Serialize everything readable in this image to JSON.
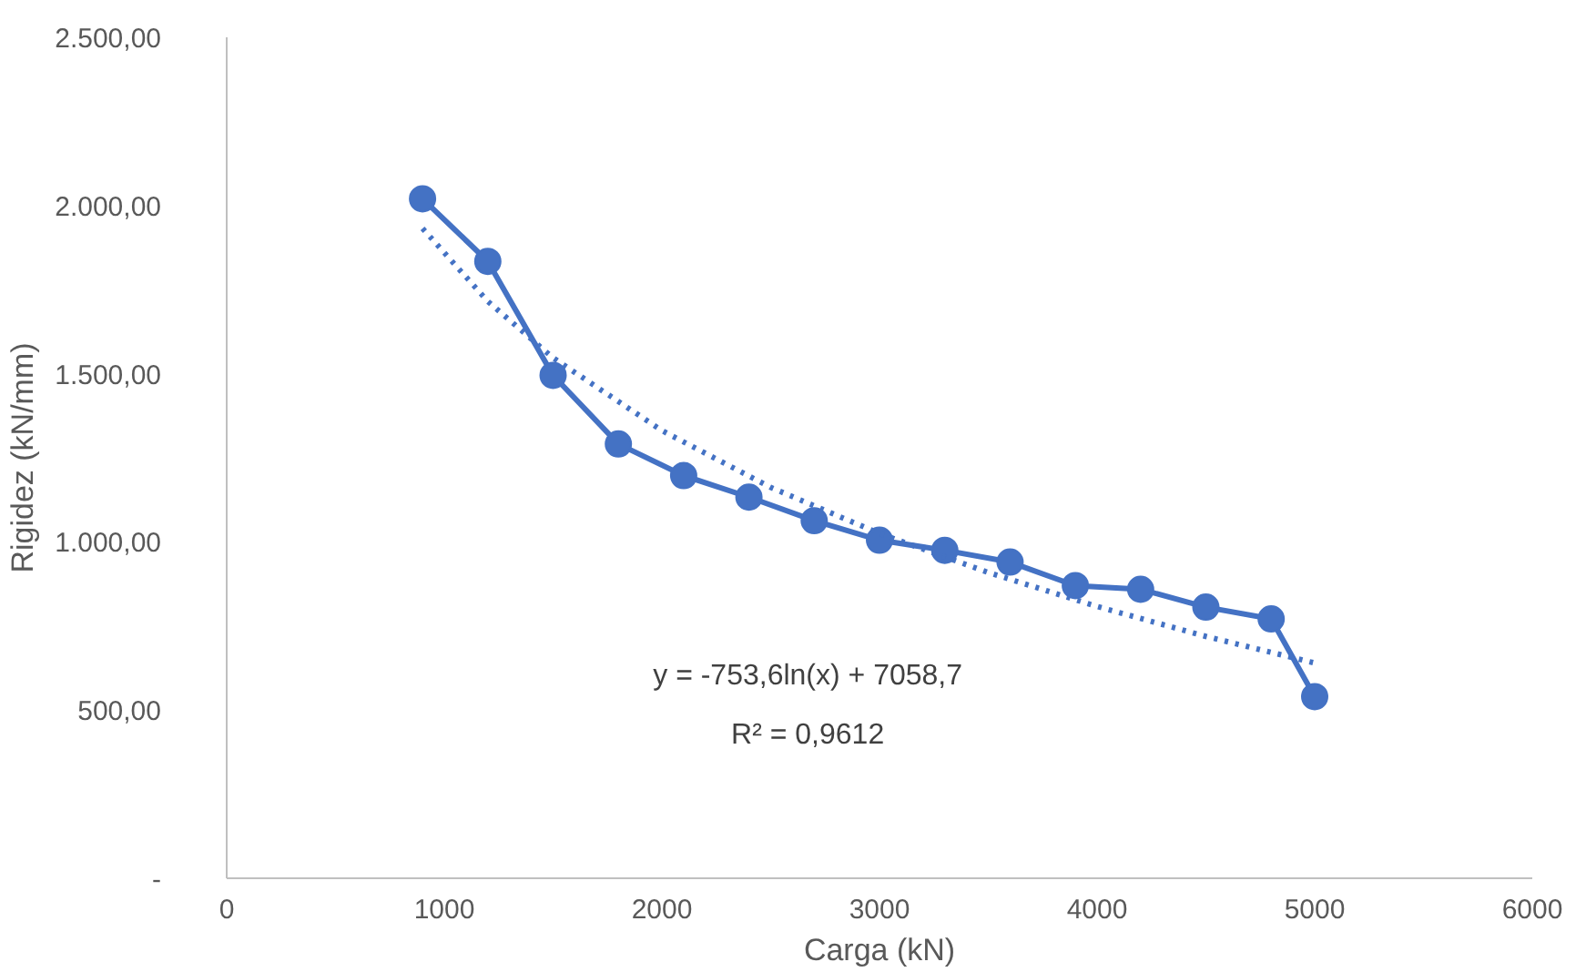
{
  "chart_data": {
    "type": "line",
    "xlabel": "Carga (kN)",
    "ylabel": "Rigidez (kN/mm)",
    "xlim": [
      0,
      6000
    ],
    "xticks": [
      0,
      1000,
      2000,
      3000,
      4000,
      5000,
      6000
    ],
    "ylim": [
      0,
      2500
    ],
    "yticks": [
      {
        "value": 0,
        "label": "-"
      },
      {
        "value": 500,
        "label": "500,00"
      },
      {
        "value": 1000,
        "label": "1.000,00"
      },
      {
        "value": 1500,
        "label": "1.500,00"
      },
      {
        "value": 2000,
        "label": "2.000,00"
      },
      {
        "value": 2500,
        "label": "2.500,00"
      }
    ],
    "grid": false,
    "annotations": [
      "y = -753,6ln(x) + 7058,7",
      "R² = 0,9612"
    ],
    "series": [
      {
        "color": "#4472c4",
        "marker": "circle",
        "line_style": "solid",
        "x": [
          900,
          1200,
          1500,
          1800,
          2100,
          2400,
          2700,
          3000,
          3300,
          3600,
          3900,
          4200,
          4500,
          4800,
          5000
        ],
        "values": [
          2020,
          1834,
          1495,
          1291,
          1197,
          1133,
          1063,
          1005,
          975,
          940,
          870,
          859,
          806,
          771,
          540
        ]
      },
      {
        "type": "line",
        "color": "#4472c4",
        "marker": "none",
        "line_style": "dotted",
        "x": [
          900,
          1200,
          1500,
          2000,
          2500,
          3000,
          3500,
          4000,
          4500,
          5000
        ],
        "values": [
          1932,
          1715,
          1547,
          1331,
          1162,
          1025,
          909,
          808,
          719,
          640
        ]
      }
    ]
  }
}
